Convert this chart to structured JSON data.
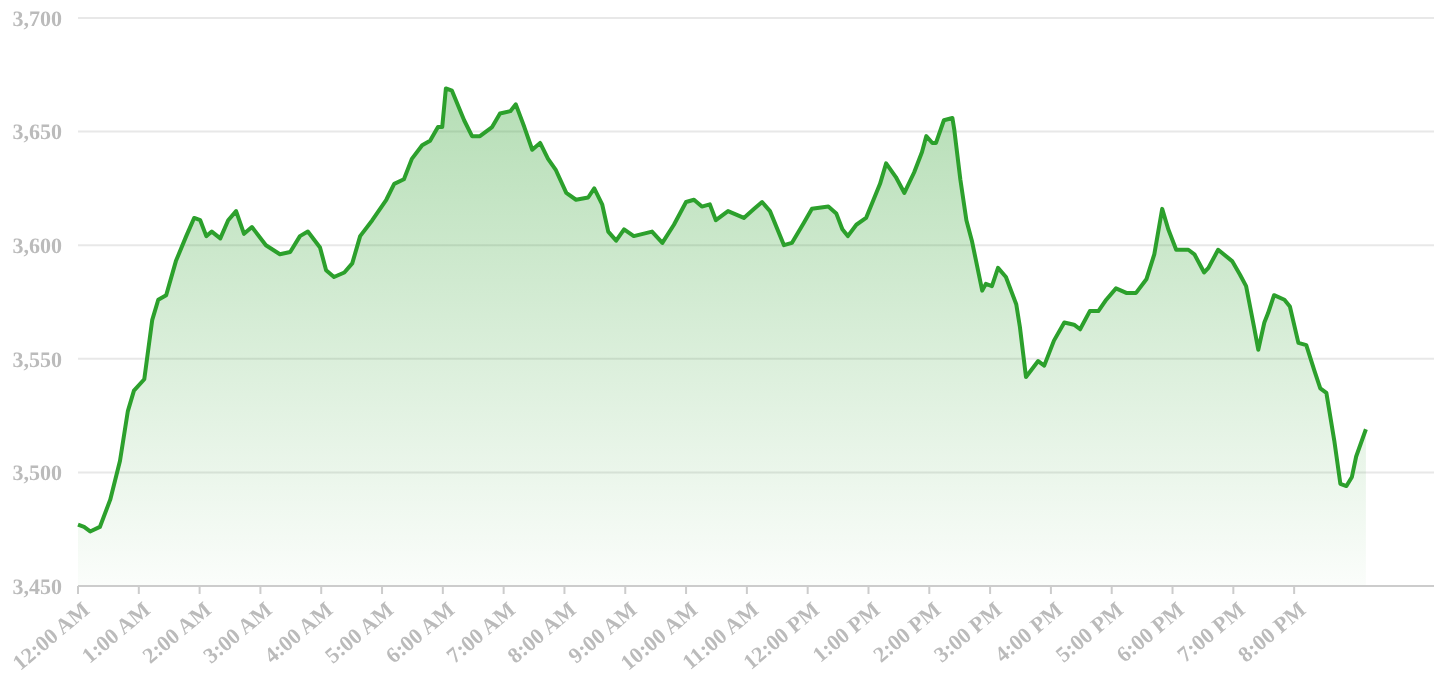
{
  "chart_data": {
    "type": "area",
    "grid": "y",
    "marker": "none",
    "line_style": "solid",
    "xlim": [
      0,
      22.3
    ],
    "ylim": [
      3450,
      3700
    ],
    "yticks": [
      {
        "value": 3450,
        "label": "3,450"
      },
      {
        "value": 3500,
        "label": "3,500"
      },
      {
        "value": 3550,
        "label": "3,550"
      },
      {
        "value": 3600,
        "label": "3,600"
      },
      {
        "value": 3650,
        "label": "3,650"
      },
      {
        "value": 3700,
        "label": "3,700"
      }
    ],
    "xticks": [
      {
        "value": 0,
        "label": "12:00 AM"
      },
      {
        "value": 1,
        "label": "1:00 AM"
      },
      {
        "value": 2,
        "label": "2:00 AM"
      },
      {
        "value": 3,
        "label": "3:00 AM"
      },
      {
        "value": 4,
        "label": "4:00 AM"
      },
      {
        "value": 5,
        "label": "5:00 AM"
      },
      {
        "value": 6,
        "label": "6:00 AM"
      },
      {
        "value": 7,
        "label": "7:00 AM"
      },
      {
        "value": 8,
        "label": "8:00 AM"
      },
      {
        "value": 9,
        "label": "9:00 AM"
      },
      {
        "value": 10,
        "label": "10:00 AM"
      },
      {
        "value": 11,
        "label": "11:00 AM"
      },
      {
        "value": 12,
        "label": "12:00 PM"
      },
      {
        "value": 13,
        "label": "1:00 PM"
      },
      {
        "value": 14,
        "label": "2:00 PM"
      },
      {
        "value": 15,
        "label": "3:00 PM"
      },
      {
        "value": 16,
        "label": "4:00 PM"
      },
      {
        "value": 17,
        "label": "5:00 PM"
      },
      {
        "value": 18,
        "label": "6:00 PM"
      },
      {
        "value": 19,
        "label": "7:00 PM"
      },
      {
        "value": 20,
        "label": "8:00 PM"
      }
    ],
    "x": [
      0,
      0.1,
      0.2,
      0.36,
      0.53,
      0.69,
      0.82,
      0.92,
      1.09,
      1.22,
      1.32,
      1.45,
      1.61,
      1.78,
      1.91,
      2.01,
      2.11,
      2.2,
      2.34,
      2.47,
      2.6,
      2.73,
      2.86,
      3.09,
      3.32,
      3.49,
      3.65,
      3.78,
      3.98,
      4.08,
      4.21,
      4.38,
      4.51,
      4.64,
      4.84,
      5.07,
      5.2,
      5.36,
      5.49,
      5.66,
      5.79,
      5.92,
      5.99,
      6.05,
      6.15,
      6.35,
      6.48,
      6.61,
      6.81,
      6.94,
      7.11,
      7.2,
      7.34,
      7.47,
      7.6,
      7.73,
      7.86,
      8.03,
      8.19,
      8.39,
      8.49,
      8.62,
      8.72,
      8.85,
      8.98,
      9.14,
      9.44,
      9.61,
      9.8,
      10,
      10.13,
      10.26,
      10.39,
      10.49,
      10.69,
      10.95,
      11.12,
      11.25,
      11.38,
      11.61,
      11.74,
      11.94,
      12.07,
      12.34,
      12.47,
      12.57,
      12.66,
      12.8,
      12.96,
      13.19,
      13.29,
      13.45,
      13.59,
      13.75,
      13.88,
      13.95,
      14.05,
      14.11,
      14.24,
      14.38,
      14.41,
      14.51,
      14.61,
      14.7,
      14.87,
      14.93,
      15.03,
      15.13,
      15.26,
      15.43,
      15.49,
      15.59,
      15.79,
      15.89,
      16.05,
      16.22,
      16.38,
      16.48,
      16.64,
      16.78,
      16.91,
      17.07,
      17.24,
      17.4,
      17.57,
      17.7,
      17.83,
      17.93,
      18.06,
      18.26,
      18.36,
      18.52,
      18.59,
      18.75,
      18.98,
      19.11,
      19.21,
      19.34,
      19.41,
      19.51,
      19.57,
      19.67,
      19.84,
      19.93,
      20.07,
      20.2,
      20.33,
      20.43,
      20.53,
      20.66,
      20.76,
      20.86,
      20.95,
      21.02,
      21.18
    ],
    "series": [
      {
        "color": "#2ca02c",
        "values": [
          3477,
          3476,
          3474,
          3476,
          3488,
          3505,
          3527,
          3536,
          3541,
          3567,
          3576,
          3578,
          3593,
          3604,
          3612,
          3611,
          3604,
          3606,
          3603,
          3611,
          3615,
          3605,
          3608,
          3600,
          3596,
          3597,
          3604,
          3606,
          3599,
          3589,
          3586,
          3588,
          3592,
          3604,
          3611,
          3620,
          3627,
          3629,
          3638,
          3644,
          3646,
          3652,
          3652,
          3669,
          3668,
          3655,
          3648,
          3648,
          3652,
          3658,
          3659,
          3662,
          3652,
          3642,
          3645,
          3638,
          3633,
          3623,
          3620,
          3621,
          3625,
          3618,
          3606,
          3602,
          3607,
          3604,
          3606,
          3601,
          3609,
          3619,
          3620,
          3617,
          3618,
          3611,
          3615,
          3612,
          3616,
          3619,
          3615,
          3600,
          3601,
          3610,
          3616,
          3617,
          3614,
          3607,
          3604,
          3609,
          3612,
          3627,
          3636,
          3630,
          3623,
          3632,
          3641,
          3648,
          3645,
          3645,
          3655,
          3656,
          3651,
          3629,
          3611,
          3602,
          3580,
          3583,
          3582,
          3590,
          3586,
          3574,
          3564,
          3542,
          3549,
          3547,
          3558,
          3566,
          3565,
          3563,
          3571,
          3571,
          3576,
          3581,
          3579,
          3579,
          3585,
          3596,
          3616,
          3607,
          3598,
          3598,
          3596,
          3588,
          3590,
          3598,
          3593,
          3587,
          3582,
          3564,
          3554,
          3566,
          3570,
          3578,
          3576,
          3573,
          3557,
          3556,
          3545,
          3537,
          3535,
          3514,
          3495,
          3494,
          3498,
          3507,
          3519
        ]
      }
    ]
  }
}
